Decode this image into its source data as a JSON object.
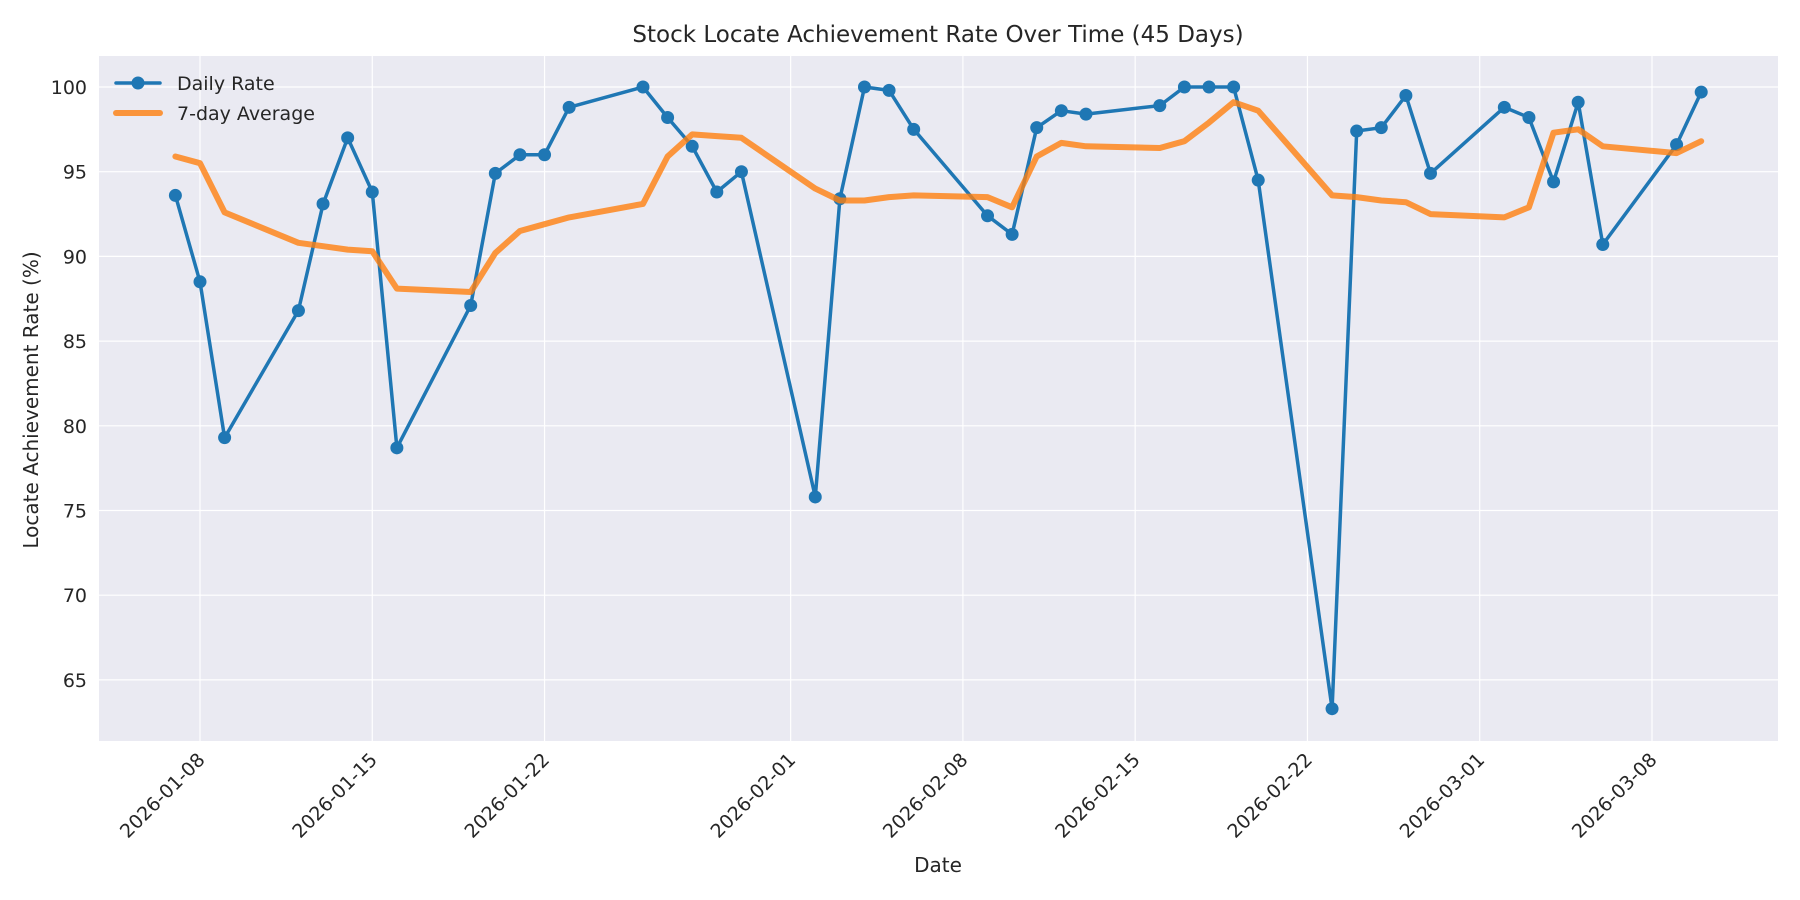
{
  "chart_data": {
    "type": "line",
    "title": "Stock Locate Achievement Rate Over Time (45 Days)",
    "xlabel": "Date",
    "ylabel": "Locate Achievement Rate (%)",
    "ylim": [
      61.4,
      101.8
    ],
    "xlim": [
      "2026-01-04",
      "2026-03-13"
    ],
    "grid": true,
    "legend_position": "upper left",
    "yticks": [
      65,
      70,
      75,
      80,
      85,
      90,
      95,
      100
    ],
    "xticks": [
      "2026-01-08",
      "2026-01-15",
      "2026-01-22",
      "2026-02-01",
      "2026-02-08",
      "2026-02-15",
      "2026-02-22",
      "2026-03-01",
      "2026-03-08"
    ],
    "x": [
      "2026-01-07",
      "2026-01-08",
      "2026-01-09",
      "2026-01-12",
      "2026-01-13",
      "2026-01-14",
      "2026-01-15",
      "2026-01-16",
      "2026-01-19",
      "2026-01-20",
      "2026-01-21",
      "2026-01-22",
      "2026-01-23",
      "2026-01-26",
      "2026-01-27",
      "2026-01-28",
      "2026-01-29",
      "2026-01-30",
      "2026-02-02",
      "2026-02-03",
      "2026-02-04",
      "2026-02-05",
      "2026-02-06",
      "2026-02-09",
      "2026-02-10",
      "2026-02-11",
      "2026-02-12",
      "2026-02-13",
      "2026-02-16",
      "2026-02-17",
      "2026-02-18",
      "2026-02-19",
      "2026-02-20",
      "2026-02-23",
      "2026-02-24",
      "2026-02-25",
      "2026-02-26",
      "2026-02-27",
      "2026-03-02",
      "2026-03-03",
      "2026-03-04",
      "2026-03-05",
      "2026-03-06",
      "2026-03-09",
      "2026-03-10"
    ],
    "series": [
      {
        "name": "Daily Rate",
        "color": "#1f77b4",
        "marker": "circle",
        "values": [
          93.6,
          88.5,
          79.3,
          86.8,
          93.1,
          97.0,
          93.8,
          78.7,
          87.1,
          94.9,
          96.0,
          96.0,
          98.8,
          100.0,
          98.2,
          96.5,
          93.8,
          95.0,
          75.8,
          93.4,
          100.0,
          99.8,
          97.5,
          92.4,
          91.3,
          97.6,
          98.6,
          98.4,
          98.9,
          100.0,
          100.0,
          100.0,
          94.5,
          63.3,
          97.4,
          97.6,
          99.5,
          94.9,
          98.8,
          98.2,
          94.4,
          99.1,
          90.7,
          96.6,
          99.7
        ]
      },
      {
        "name": "7-day Average",
        "color": "#ff7f0e",
        "marker": "none",
        "values": [
          95.9,
          95.5,
          92.6,
          90.8,
          90.6,
          90.4,
          90.3,
          88.1,
          87.9,
          90.2,
          91.5,
          91.9,
          92.3,
          93.1,
          95.9,
          97.2,
          97.1,
          97.0,
          94.0,
          93.3,
          93.3,
          93.5,
          93.6,
          93.5,
          92.9,
          95.9,
          96.7,
          96.5,
          96.4,
          96.8,
          97.9,
          99.1,
          98.6,
          93.6,
          93.5,
          93.3,
          93.2,
          92.5,
          92.3,
          92.9,
          97.3,
          97.5,
          96.5,
          96.1,
          96.8
        ]
      }
    ]
  }
}
